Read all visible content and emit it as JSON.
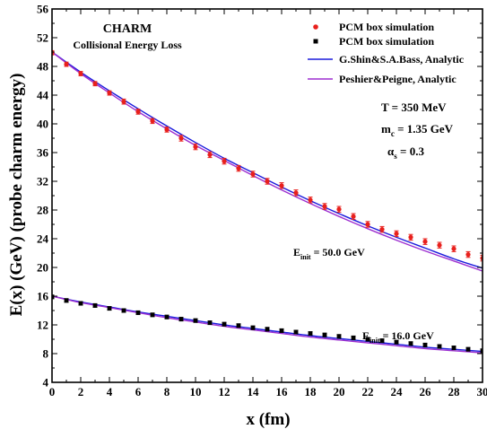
{
  "chart_data": {
    "type": "scatter",
    "xlabel": "x (fm)",
    "ylabel": "E(x) (GeV) (probe charm energy)",
    "xlim": [
      0,
      30
    ],
    "ylim": [
      4,
      56
    ],
    "x_ticks": [
      0,
      2,
      4,
      6,
      8,
      10,
      12,
      14,
      16,
      18,
      20,
      22,
      24,
      26,
      28,
      30
    ],
    "y_ticks": [
      4,
      8,
      12,
      16,
      20,
      24,
      28,
      32,
      36,
      40,
      44,
      48,
      52,
      56
    ],
    "grid": false,
    "legend_position": "top-right",
    "annotations": {
      "title_line1": "CHARM",
      "title_line2": "Collisional Energy Loss",
      "T": "T = 350 MeV",
      "mc_prefix": "m",
      "mc_sub": "c",
      "mc_value": " = 1.35 GeV",
      "alpha_symbol": "α",
      "alpha_sub": "s",
      "alpha_value": " = 0.3",
      "einit_high_prefix": "E",
      "einit_high_sub": "init",
      "einit_high_value": "= 50.0 GeV",
      "einit_low_prefix": "E",
      "einit_low_sub": "init",
      "einit_low_value": "= 16.0 GeV"
    },
    "series": [
      {
        "name": "PCM box simulation",
        "kind": "points",
        "marker": "circle",
        "color": "#e8201c",
        "x": [
          0,
          1,
          2,
          3,
          4,
          5,
          6,
          7,
          8,
          9,
          10,
          11,
          12,
          13,
          14,
          15,
          16,
          17,
          18,
          19,
          20,
          21,
          22,
          23,
          24,
          25,
          26,
          27,
          28,
          29,
          30
        ],
        "y": [
          49.9,
          48.3,
          47.0,
          45.6,
          44.3,
          43.1,
          41.7,
          40.4,
          39.2,
          38.0,
          36.8,
          35.7,
          34.8,
          33.8,
          33.0,
          32.0,
          31.4,
          30.4,
          29.4,
          28.5,
          28.1,
          27.1,
          26.0,
          25.3,
          24.7,
          24.2,
          23.6,
          23.1,
          22.6,
          21.8,
          21.3
        ],
        "err": [
          0.3,
          0.3,
          0.3,
          0.3,
          0.3,
          0.35,
          0.35,
          0.35,
          0.35,
          0.4,
          0.4,
          0.4,
          0.4,
          0.4,
          0.4,
          0.4,
          0.4,
          0.4,
          0.4,
          0.4,
          0.4,
          0.4,
          0.4,
          0.4,
          0.4,
          0.4,
          0.4,
          0.4,
          0.4,
          0.4,
          0.4
        ]
      },
      {
        "name": "PCM box simulation",
        "kind": "points",
        "marker": "square",
        "color": "#000000",
        "x": [
          0,
          1,
          2,
          3,
          4,
          5,
          6,
          7,
          8,
          9,
          10,
          11,
          12,
          13,
          14,
          15,
          16,
          17,
          18,
          19,
          20,
          21,
          22,
          23,
          24,
          25,
          26,
          27,
          28,
          29,
          30
        ],
        "y": [
          15.9,
          15.4,
          15.0,
          14.7,
          14.3,
          14.0,
          13.7,
          13.4,
          13.1,
          12.8,
          12.6,
          12.3,
          12.1,
          11.9,
          11.6,
          11.4,
          11.2,
          11.0,
          10.8,
          10.6,
          10.4,
          10.2,
          10.0,
          9.8,
          9.6,
          9.4,
          9.2,
          9.0,
          8.8,
          8.6,
          8.4
        ],
        "err": [
          0.25,
          0.25,
          0.25,
          0.25,
          0.25,
          0.25,
          0.25,
          0.25,
          0.25,
          0.25,
          0.25,
          0.25,
          0.25,
          0.25,
          0.25,
          0.25,
          0.25,
          0.25,
          0.25,
          0.25,
          0.25,
          0.25,
          0.25,
          0.25,
          0.25,
          0.25,
          0.25,
          0.25,
          0.25,
          0.25,
          0.25
        ]
      },
      {
        "name": "G.Shin&S.A.Bass, Analytic",
        "kind": "line",
        "color": "#1a1adc",
        "groups": [
          {
            "x": [
              0,
              2,
              4,
              6,
              8,
              10,
              12,
              14,
              16,
              18,
              20,
              22,
              24,
              26,
              28,
              30
            ],
            "y": [
              50.0,
              47.2,
              44.6,
              42.1,
              39.7,
              37.4,
              35.2,
              33.2,
              31.2,
              29.3,
              27.5,
              25.8,
              24.2,
              22.7,
              21.2,
              19.9
            ]
          },
          {
            "x": [
              0,
              2,
              4,
              6,
              8,
              10,
              12,
              14,
              16,
              18,
              20,
              22,
              24,
              26,
              28,
              30
            ],
            "y": [
              16.0,
              15.2,
              14.5,
              13.8,
              13.2,
              12.6,
              12.0,
              11.5,
              11.0,
              10.5,
              10.1,
              9.7,
              9.3,
              8.9,
              8.6,
              8.3
            ]
          }
        ]
      },
      {
        "name": "Peshier&Peigne, Analytic",
        "kind": "line",
        "color": "#9d2fd0",
        "groups": [
          {
            "x": [
              0,
              2,
              4,
              6,
              8,
              10,
              12,
              14,
              16,
              18,
              20,
              22,
              24,
              26,
              28,
              30
            ],
            "y": [
              50.0,
              47.0,
              44.3,
              41.7,
              39.3,
              37.0,
              34.9,
              32.8,
              30.8,
              28.9,
              27.1,
              25.4,
              23.8,
              22.3,
              20.9,
              19.5
            ]
          },
          {
            "x": [
              0,
              2,
              4,
              6,
              8,
              10,
              12,
              14,
              16,
              18,
              20,
              22,
              24,
              26,
              28,
              30
            ],
            "y": [
              16.0,
              15.1,
              14.4,
              13.7,
              13.0,
              12.4,
              11.8,
              11.3,
              10.8,
              10.3,
              9.9,
              9.5,
              9.1,
              8.7,
              8.4,
              8.1
            ]
          }
        ]
      }
    ]
  }
}
